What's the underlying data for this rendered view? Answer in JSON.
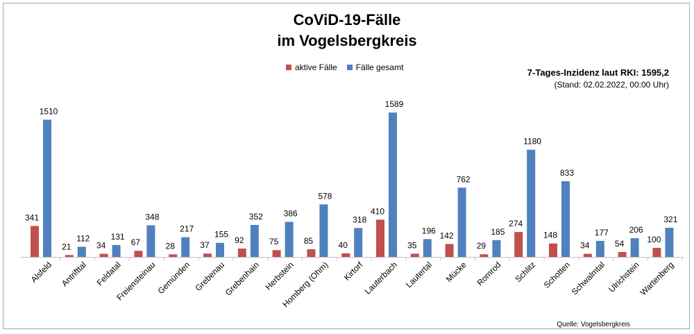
{
  "title_line1": "CoViD-19-Fälle",
  "title_line2": "im Vogelsbergkreis",
  "legend": {
    "active_label": "aktive Fälle",
    "total_label": "Fälle gesamt"
  },
  "incidence_note": "7-Tages-Inzidenz laut RKI: 1595,2",
  "stand_note": "(Stand: 02.02.2022, 00:00 Uhr)",
  "source": "Quelle: Vogelsbergkreis",
  "colors": {
    "active": "#c0504d",
    "total": "#4f81bd"
  },
  "chart_data": {
    "type": "bar",
    "title": "CoViD-19-Fälle im Vogelsbergkreis",
    "xlabel": "",
    "ylabel": "",
    "ylim": [
      0,
      1620
    ],
    "grid": false,
    "legend_position": "top",
    "categories": [
      "Alsfeld",
      "Antrifttal",
      "Feldatal",
      "Freiensteinau",
      "Gemünden",
      "Grebenau",
      "Grebenhain",
      "Herbstein",
      "Homberg (Ohm)",
      "Kirtorf",
      "Lauterbach",
      "Lautertal",
      "Mücke",
      "Romrod",
      "Schlitz",
      "Schotten",
      "Schwalmtal",
      "Ulrichstein",
      "Wartenberg"
    ],
    "series": [
      {
        "name": "aktive Fälle",
        "values": [
          341,
          21,
          34,
          67,
          28,
          37,
          92,
          75,
          85,
          40,
          410,
          35,
          142,
          29,
          274,
          148,
          34,
          54,
          100
        ]
      },
      {
        "name": "Fälle gesamt",
        "values": [
          1510,
          112,
          131,
          348,
          217,
          155,
          352,
          386,
          578,
          318,
          1589,
          196,
          762,
          185,
          1180,
          833,
          177,
          206,
          321
        ]
      }
    ]
  }
}
